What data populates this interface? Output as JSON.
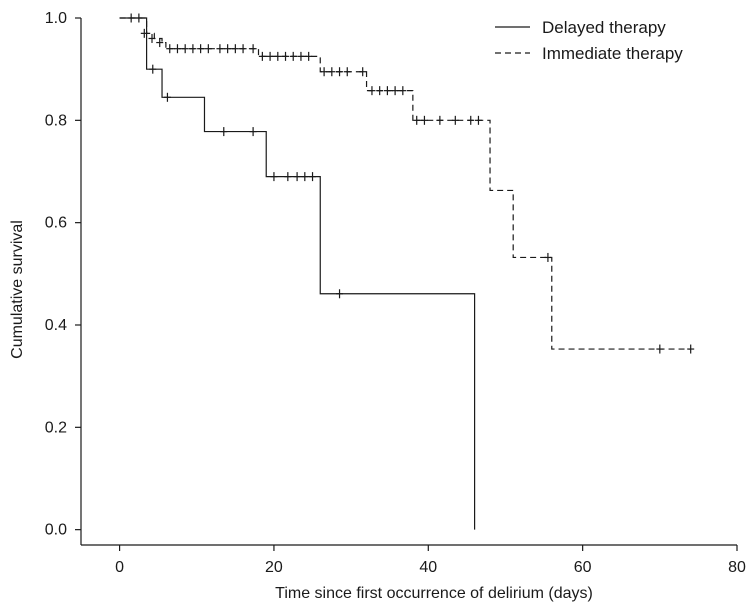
{
  "chart_data": {
    "type": "line",
    "subtype": "kaplan-meier step curve",
    "title": "",
    "xlabel": "Time since first occurrence of delirium (days)",
    "ylabel": "Cumulative survival",
    "xlim": [
      -5,
      80
    ],
    "ylim": [
      -0.03,
      1.0
    ],
    "x_ticks": [
      0,
      20,
      40,
      60,
      80
    ],
    "x_tick_labels": [
      "0",
      "20",
      "40",
      "60",
      "80"
    ],
    "y_ticks": [
      0.0,
      0.2,
      0.4,
      0.6,
      0.8,
      1.0
    ],
    "y_tick_labels": [
      "0.0",
      "0.2",
      "0.4",
      "0.6",
      "0.8",
      "1.0"
    ],
    "grid": false,
    "legend_position": "top-right",
    "series": [
      {
        "name": "Delayed therapy",
        "line_style": "solid",
        "color": "#1a1a1a",
        "steps": [
          [
            0,
            1.0
          ],
          [
            3.5,
            0.9
          ],
          [
            5.5,
            0.845
          ],
          [
            11,
            0.778
          ],
          [
            19,
            0.69
          ],
          [
            26,
            0.461
          ],
          [
            46,
            0.0
          ]
        ],
        "end_x": 46,
        "censored": [
          [
            4.3,
            0.9
          ],
          [
            6.2,
            0.845
          ],
          [
            13.5,
            0.778
          ],
          [
            17.3,
            0.778
          ],
          [
            20,
            0.69
          ],
          [
            21.8,
            0.69
          ],
          [
            23,
            0.69
          ],
          [
            24,
            0.69
          ],
          [
            25,
            0.69
          ],
          [
            28.5,
            0.461
          ]
        ]
      },
      {
        "name": "Immediate therapy",
        "line_style": "dashed",
        "color": "#1a1a1a",
        "steps": [
          [
            0,
            1.0
          ],
          [
            3.5,
            0.97
          ],
          [
            4.5,
            0.96
          ],
          [
            5.5,
            0.952
          ],
          [
            6,
            0.94
          ],
          [
            18,
            0.925
          ],
          [
            26,
            0.895
          ],
          [
            32,
            0.858
          ],
          [
            38,
            0.8
          ],
          [
            48,
            0.663
          ],
          [
            51,
            0.532
          ],
          [
            56,
            0.353
          ]
        ],
        "end_x": 74,
        "censored": [
          [
            1.5,
            1.0
          ],
          [
            2.5,
            1.0
          ],
          [
            3.2,
            0.97
          ],
          [
            4.2,
            0.96
          ],
          [
            5.2,
            0.952
          ],
          [
            6.5,
            0.94
          ],
          [
            7.5,
            0.94
          ],
          [
            8.5,
            0.94
          ],
          [
            9.5,
            0.94
          ],
          [
            10.5,
            0.94
          ],
          [
            11.5,
            0.94
          ],
          [
            13,
            0.94
          ],
          [
            14,
            0.94
          ],
          [
            15,
            0.94
          ],
          [
            16,
            0.94
          ],
          [
            17.3,
            0.94
          ],
          [
            18.5,
            0.925
          ],
          [
            19.5,
            0.925
          ],
          [
            20.5,
            0.925
          ],
          [
            21.5,
            0.925
          ],
          [
            22.5,
            0.925
          ],
          [
            23.5,
            0.925
          ],
          [
            24.5,
            0.925
          ],
          [
            26.5,
            0.895
          ],
          [
            27.5,
            0.895
          ],
          [
            28.5,
            0.895
          ],
          [
            29.5,
            0.895
          ],
          [
            31.5,
            0.895
          ],
          [
            32.7,
            0.858
          ],
          [
            33.7,
            0.858
          ],
          [
            34.7,
            0.858
          ],
          [
            35.7,
            0.858
          ],
          [
            36.7,
            0.858
          ],
          [
            38.5,
            0.8
          ],
          [
            39.5,
            0.8
          ],
          [
            41.5,
            0.8
          ],
          [
            43.5,
            0.8
          ],
          [
            45.5,
            0.8
          ],
          [
            46.5,
            0.8
          ],
          [
            55.5,
            0.532
          ],
          [
            70,
            0.353
          ],
          [
            74,
            0.353
          ]
        ]
      }
    ]
  }
}
